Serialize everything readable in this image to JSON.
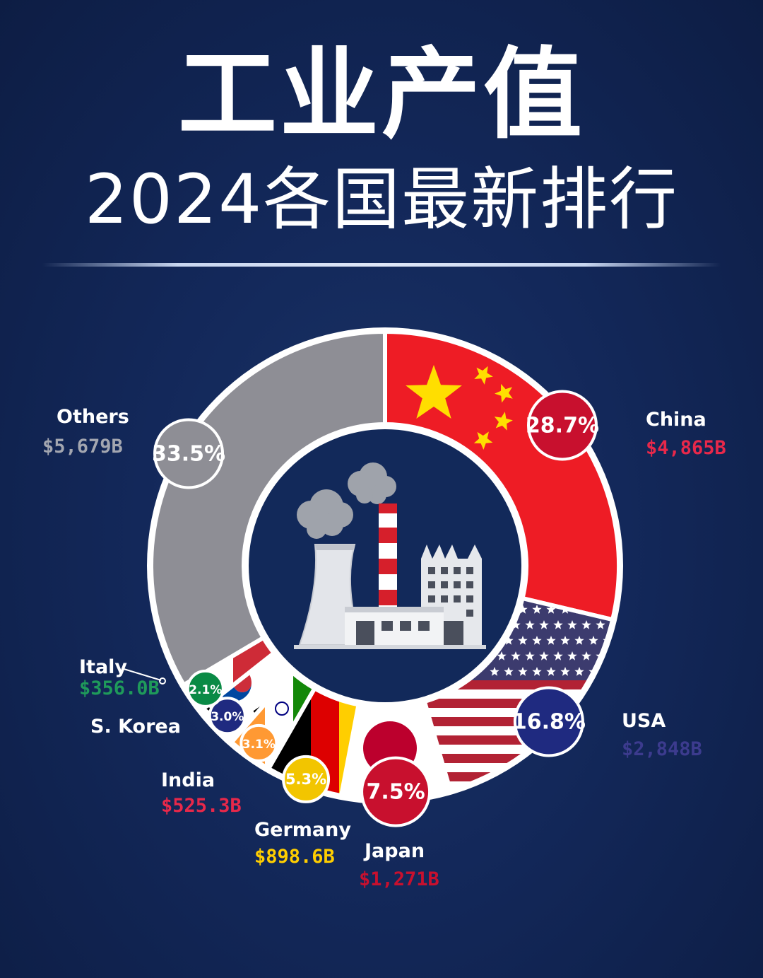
{
  "header": {
    "title": "工业产值",
    "subtitle": "2024各国最新排行"
  },
  "chart_data": {
    "type": "pie",
    "slices": [
      {
        "name": "China",
        "label": "28.7%",
        "value": 28.7,
        "amount": "$4,865B",
        "color": "#e8202a",
        "name_color": "#ffffff",
        "amount_color": "#e8284a"
      },
      {
        "name": "USA",
        "label": "16.8%",
        "value": 16.8,
        "amount": "$2,848B",
        "color": "#b22234",
        "name_color": "#ffffff",
        "amount_color": "#3c3b8e"
      },
      {
        "name": "Japan",
        "label": "7.5%",
        "value": 7.5,
        "amount": "$1,271B",
        "color": "#ffffff",
        "name_color": "#ffffff",
        "amount_color": "#c8102e"
      },
      {
        "name": "Germany",
        "label": "5.3%",
        "value": 5.3,
        "amount": "$898.6B",
        "color": "#ffce00",
        "name_color": "#ffffff",
        "amount_color": "#ffce00"
      },
      {
        "name": "India",
        "label": "3.1%",
        "value": 3.1,
        "amount": "$525.3B",
        "color": "#ff9933",
        "name_color": "#ffffff",
        "amount_color": "#e8284a"
      },
      {
        "name": "S. Korea",
        "label": "3.0%",
        "value": 3.0,
        "amount": "",
        "color": "#ffffff",
        "name_color": "#ffffff",
        "amount_color": "#23237a"
      },
      {
        "name": "Italy",
        "label": "2.1%",
        "value": 2.1,
        "amount": "$356.0B",
        "color": "#009246",
        "name_color": "#ffffff",
        "amount_color": "#1f9a5a"
      },
      {
        "name": "Others",
        "label": "33.5%",
        "value": 33.5,
        "amount": "$5,679B",
        "color": "#8e8e95",
        "name_color": "#ffffff",
        "amount_color": "#a3a6b0"
      }
    ]
  }
}
